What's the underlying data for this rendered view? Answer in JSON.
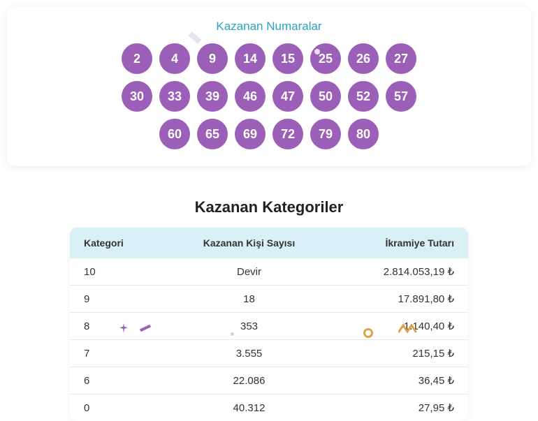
{
  "numbers": {
    "title": "Kazanan Numaralar",
    "title_color": "#2ba3c4",
    "ball_bg": "#9b5fb8",
    "ball_fg": "#ffffff",
    "rows": [
      [
        "2",
        "4",
        "9",
        "14",
        "15",
        "25",
        "26",
        "27"
      ],
      [
        "30",
        "33",
        "39",
        "46",
        "47",
        "50",
        "52",
        "57"
      ],
      [
        "60",
        "65",
        "69",
        "72",
        "79",
        "80"
      ]
    ]
  },
  "categories": {
    "title": "Kazanan Kategoriler",
    "header_bg": "#d9f0f6",
    "columns": [
      "Kategori",
      "Kazanan Kişi Sayısı",
      "İkramiye Tutarı"
    ],
    "rows": [
      [
        "10",
        "Devir",
        "2.814.053,19 ₺"
      ],
      [
        "9",
        "18",
        "17.891,80 ₺"
      ],
      [
        "8",
        "353",
        "1.140,40 ₺"
      ],
      [
        "7",
        "3.555",
        "215,15 ₺"
      ],
      [
        "6",
        "22.086",
        "36,45 ₺"
      ],
      [
        "0",
        "40.312",
        "27,95 ₺"
      ]
    ]
  },
  "style": {
    "card_shadow": "0 2px 12px rgba(0,0,0,0.08)",
    "accent_purple": "#9b5fb8",
    "accent_teal": "#2ba3c4",
    "accent_orange": "#d9a34a",
    "row_border": "#e8e8e8"
  }
}
